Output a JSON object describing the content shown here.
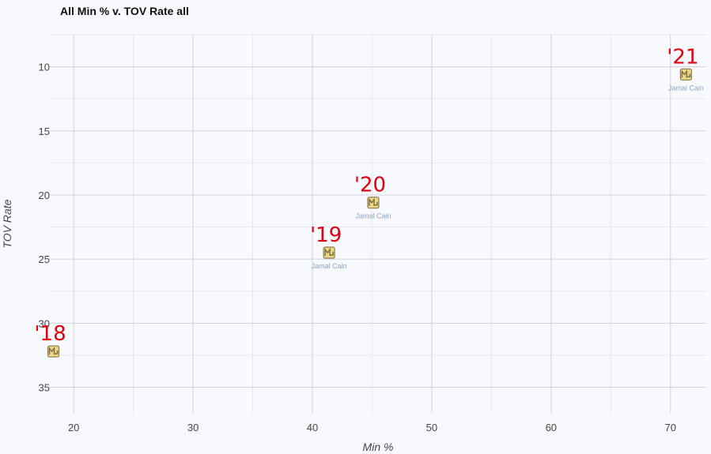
{
  "chart_data": {
    "type": "scatter",
    "title": "All Min % v. TOV Rate all",
    "xlabel": "Min %",
    "ylabel": "TOV Rate",
    "xlim": [
      18,
      73
    ],
    "ylim": [
      7.5,
      37
    ],
    "y_reversed": true,
    "x_ticks": [
      20,
      30,
      40,
      50,
      60,
      70
    ],
    "y_ticks": [
      10,
      15,
      20,
      25,
      30,
      35
    ],
    "grid": true,
    "points": [
      {
        "x": 18.3,
        "y": 32.2,
        "label": "",
        "annotation": "'18"
      },
      {
        "x": 41.4,
        "y": 24.5,
        "label": "Jamal Cain",
        "annotation": "'19"
      },
      {
        "x": 45.1,
        "y": 20.6,
        "label": "Jamal Cain",
        "annotation": "'20"
      },
      {
        "x": 71.3,
        "y": 10.6,
        "label": "Jamal Cain",
        "annotation": "'21"
      }
    ],
    "marker_colors": {
      "fill": "#e8d88a",
      "stroke": "#8a7a4a",
      "logo": "#7a6a3a"
    },
    "annotation_color": "#e00012"
  }
}
